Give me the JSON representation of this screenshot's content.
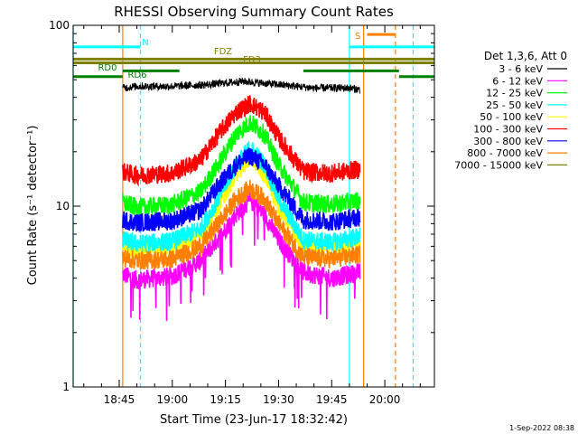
{
  "chart_data": {
    "type": "line",
    "title": "RHESSI Observing Summary Count Rates",
    "xlabel": "Start Time (23-Jun-17 18:32:42)",
    "ylabel": "Count Rate (s⁻¹ detector⁻¹)",
    "yscale": "log",
    "ylim": [
      1,
      100
    ],
    "xlim": [
      "18:32",
      "20:14"
    ],
    "xticks": [
      "18:45",
      "19:00",
      "19:15",
      "19:30",
      "19:45",
      "20:00"
    ],
    "yticks": [
      "1",
      "10",
      "100"
    ],
    "grid": false,
    "legend_position": "right",
    "legend_header": "Det 1,3,6, Att 0",
    "series": [
      {
        "name": "3 - 6 keV",
        "color": "#000000",
        "x": [
          "18:46",
          "18:50",
          "19:00",
          "19:10",
          "19:15",
          "19:20",
          "19:25",
          "19:30",
          "19:40",
          "19:50",
          "19:53"
        ],
        "y": [
          45,
          46,
          46,
          47,
          48,
          49,
          48,
          47,
          45,
          45,
          44
        ]
      },
      {
        "name": "6 - 12 keV",
        "color": "#ff00ff",
        "x": [
          "18:46",
          "18:50",
          "19:00",
          "19:08",
          "19:13",
          "19:18",
          "19:22",
          "19:26",
          "19:30",
          "19:37",
          "19:45",
          "19:53"
        ],
        "y": [
          4.2,
          3.9,
          4.1,
          5.0,
          6.6,
          9.0,
          10.8,
          9.0,
          6.5,
          4.3,
          4.0,
          4.3
        ]
      },
      {
        "name": "12 - 25 keV",
        "color": "#00ff00",
        "x": [
          "18:46",
          "18:50",
          "19:00",
          "19:08",
          "19:13",
          "19:18",
          "19:22",
          "19:26",
          "19:30",
          "19:37",
          "19:45",
          "19:53"
        ],
        "y": [
          10.5,
          9.8,
          10.2,
          12,
          17,
          25,
          29,
          25,
          17,
          10.5,
          10.2,
          10.8
        ]
      },
      {
        "name": "25 - 50 keV",
        "color": "#00ffff",
        "x": [
          "18:46",
          "18:50",
          "19:00",
          "19:08",
          "19:13",
          "19:18",
          "19:22",
          "19:26",
          "19:30",
          "19:37",
          "19:45",
          "19:53"
        ],
        "y": [
          6.5,
          6.2,
          6.4,
          7.5,
          11,
          17,
          21,
          17,
          11,
          6.5,
          6.3,
          6.8
        ]
      },
      {
        "name": "50 - 100 keV",
        "color": "#ffff00",
        "x": [
          "18:46",
          "18:50",
          "19:00",
          "19:08",
          "19:13",
          "19:18",
          "19:22",
          "19:26",
          "19:30",
          "19:37",
          "19:45",
          "19:53"
        ],
        "y": [
          6,
          5.8,
          6,
          7,
          10,
          15,
          19,
          15,
          10,
          6,
          5.9,
          6.3
        ]
      },
      {
        "name": "100 - 300 keV",
        "color": "#ff0000",
        "x": [
          "18:46",
          "18:50",
          "19:00",
          "19:08",
          "19:13",
          "19:18",
          "19:22",
          "19:26",
          "19:30",
          "19:37",
          "19:45",
          "19:53"
        ],
        "y": [
          15.5,
          14.8,
          15.2,
          18,
          25,
          33,
          37,
          33,
          24,
          15.5,
          15.2,
          16
        ]
      },
      {
        "name": "300 - 800 keV",
        "color": "#0000ff",
        "x": [
          "18:46",
          "18:50",
          "19:00",
          "19:08",
          "19:13",
          "19:18",
          "19:22",
          "19:26",
          "19:30",
          "19:37",
          "19:45",
          "19:53"
        ],
        "y": [
          8.4,
          8.1,
          8.3,
          9.5,
          13,
          17,
          19,
          17,
          13,
          8.4,
          8.2,
          8.7
        ]
      },
      {
        "name": "800 - 7000 keV",
        "color": "#ff8000",
        "x": [
          "18:46",
          "18:50",
          "19:00",
          "19:08",
          "19:13",
          "19:18",
          "19:22",
          "19:26",
          "19:30",
          "19:37",
          "19:45",
          "19:53"
        ],
        "y": [
          5.2,
          5.0,
          5.1,
          6.0,
          8.0,
          11,
          12.5,
          11,
          8,
          5.2,
          5.1,
          5.4
        ]
      },
      {
        "name": "7000 - 15000 keV",
        "color": "#808000",
        "x": [
          "18:32",
          "20:14"
        ],
        "y": [
          62,
          62
        ]
      }
    ],
    "flag_bars": [
      {
        "label": "N",
        "color": "#00ffff",
        "y": 76,
        "segments": [
          [
            "18:32",
            "18:51"
          ],
          [
            "19:50",
            "20:14"
          ]
        ]
      },
      {
        "label": "S",
        "color": "#ff8000",
        "y": 89,
        "segments": [
          [
            "19:55",
            "20:03"
          ]
        ]
      },
      {
        "label": "FDZ",
        "color": "#808000",
        "y": 65,
        "segments": [
          [
            "18:32",
            "20:14"
          ]
        ]
      },
      {
        "label": "FD3",
        "color": "#808000",
        "y": 60,
        "segments": []
      },
      {
        "label": "RD0",
        "color": "#007f00",
        "y": 56,
        "segments": [
          [
            "18:46",
            "19:02"
          ],
          [
            "19:37",
            "20:04"
          ]
        ]
      },
      {
        "label": "RD6",
        "color": "#007f00",
        "y": 52,
        "segments": [
          [
            "18:32",
            "18:46"
          ],
          [
            "20:04",
            "20:14"
          ]
        ]
      }
    ],
    "vertical_lines": [
      {
        "x": "18:32",
        "color": "#00ffff",
        "style": "solid"
      },
      {
        "x": "18:46",
        "color": "#ff8000",
        "style": "solid"
      },
      {
        "x": "18:51",
        "color": "#00ffff",
        "style": "dashed"
      },
      {
        "x": "19:50",
        "color": "#00ffff",
        "style": "solid"
      },
      {
        "x": "19:54",
        "color": "#ff8000",
        "style": "solid"
      },
      {
        "x": "20:03",
        "color": "#ff8000",
        "style": "dashed"
      },
      {
        "x": "20:08",
        "color": "#00ffff",
        "style": "dashed"
      }
    ]
  },
  "footer": {
    "date_stamp": "1-Sep-2022 08:38"
  }
}
